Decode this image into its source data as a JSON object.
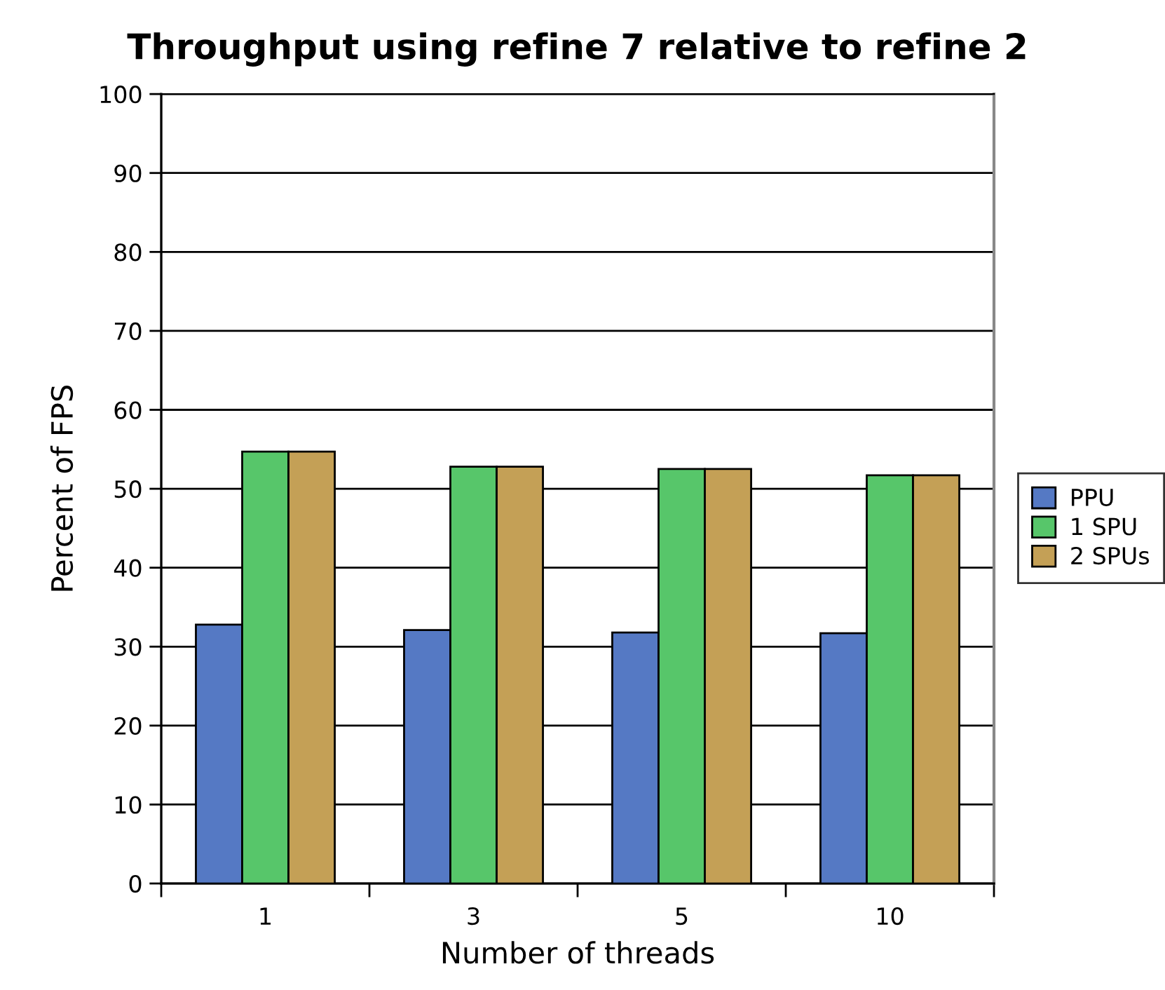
{
  "chart_data": {
    "type": "bar",
    "title": "Throughput using refine 7 relative to refine 2",
    "xlabel": "Number of threads",
    "ylabel": "Percent of FPS",
    "categories": [
      "1",
      "3",
      "5",
      "10"
    ],
    "series": [
      {
        "name": "PPU",
        "color": "#5579c4",
        "values": [
          32.8,
          32.1,
          31.8,
          31.7
        ]
      },
      {
        "name": "1 SPU",
        "color": "#57c66a",
        "values": [
          54.7,
          52.8,
          52.5,
          51.7
        ]
      },
      {
        "name": "2 SPUs",
        "color": "#c4a056",
        "values": [
          54.7,
          52.8,
          52.5,
          51.7
        ]
      }
    ],
    "ylim": [
      0,
      100
    ],
    "yticks": [
      0,
      10,
      20,
      30,
      40,
      50,
      60,
      70,
      80,
      90,
      100
    ],
    "grid": "y",
    "legend": "right"
  }
}
